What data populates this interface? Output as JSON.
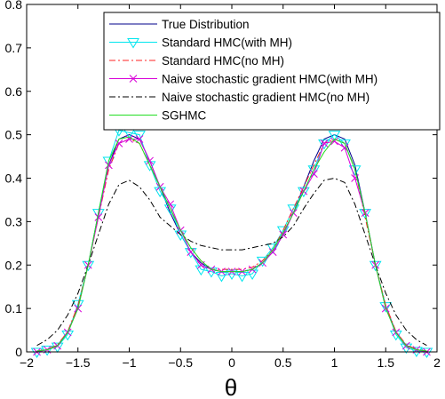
{
  "chart_data": {
    "type": "line",
    "xlabel": "θ",
    "ylabel": "",
    "title": "",
    "xlim": [
      -2,
      2
    ],
    "ylim": [
      0,
      0.8
    ],
    "xticks": [
      "−2",
      "−1.5",
      "−1",
      "−0.5",
      "0",
      "0.5",
      "1",
      "1.5",
      "2"
    ],
    "yticks": [
      "0",
      "0.1",
      "0.2",
      "0.3",
      "0.4",
      "0.5",
      "0.6",
      "0.7",
      "0.8"
    ],
    "grid": false,
    "legend_position": "top-right",
    "x": [
      -1.9,
      -1.8,
      -1.7,
      -1.6,
      -1.5,
      -1.4,
      -1.3,
      -1.2,
      -1.1,
      -1.0,
      -0.9,
      -0.8,
      -0.7,
      -0.6,
      -0.5,
      -0.4,
      -0.3,
      -0.2,
      -0.1,
      0.0,
      0.1,
      0.2,
      0.3,
      0.4,
      0.5,
      0.6,
      0.7,
      0.8,
      0.9,
      1.0,
      1.1,
      1.2,
      1.3,
      1.4,
      1.5,
      1.6,
      1.7,
      1.8,
      1.9
    ],
    "series": [
      {
        "name": "True Distribution",
        "color": "#00008b",
        "dash": "solid",
        "marker": "none",
        "values": [
          0.002,
          0.005,
          0.015,
          0.045,
          0.105,
          0.2,
          0.32,
          0.43,
          0.49,
          0.5,
          0.49,
          0.44,
          0.38,
          0.32,
          0.27,
          0.23,
          0.205,
          0.19,
          0.185,
          0.185,
          0.185,
          0.19,
          0.205,
          0.23,
          0.27,
          0.32,
          0.38,
          0.44,
          0.49,
          0.5,
          0.49,
          0.43,
          0.32,
          0.2,
          0.105,
          0.045,
          0.015,
          0.005,
          0.002
        ]
      },
      {
        "name": "Standard HMC(with MH)",
        "color": "#00e5ee",
        "dash": "solid",
        "marker": "triangle-down",
        "values": [
          0.0,
          0.005,
          0.012,
          0.04,
          0.11,
          0.2,
          0.32,
          0.44,
          0.51,
          0.505,
          0.5,
          0.43,
          0.37,
          0.33,
          0.27,
          0.23,
          0.19,
          0.185,
          0.175,
          0.18,
          0.175,
          0.18,
          0.21,
          0.24,
          0.28,
          0.33,
          0.37,
          0.42,
          0.48,
          0.5,
          0.48,
          0.42,
          0.32,
          0.2,
          0.105,
          0.04,
          0.01,
          0.002,
          0.0
        ]
      },
      {
        "name": "Standard HMC(no MH)",
        "color": "#ff2020",
        "dash": "dashdot",
        "marker": "none",
        "values": [
          0.002,
          0.006,
          0.016,
          0.047,
          0.107,
          0.2,
          0.31,
          0.42,
          0.48,
          0.49,
          0.48,
          0.43,
          0.38,
          0.33,
          0.28,
          0.24,
          0.21,
          0.19,
          0.19,
          0.19,
          0.19,
          0.195,
          0.21,
          0.235,
          0.28,
          0.33,
          0.38,
          0.43,
          0.48,
          0.49,
          0.48,
          0.42,
          0.31,
          0.2,
          0.107,
          0.047,
          0.016,
          0.006,
          0.002
        ]
      },
      {
        "name": "Naive stochastic gradient HMC(with MH)",
        "color": "#d800d8",
        "dash": "solid",
        "marker": "x",
        "values": [
          0.0,
          0.005,
          0.014,
          0.045,
          0.1,
          0.2,
          0.31,
          0.43,
          0.48,
          0.49,
          0.49,
          0.44,
          0.38,
          0.34,
          0.28,
          0.23,
          0.2,
          0.19,
          0.185,
          0.185,
          0.185,
          0.19,
          0.205,
          0.23,
          0.27,
          0.32,
          0.37,
          0.41,
          0.48,
          0.485,
          0.47,
          0.4,
          0.32,
          0.2,
          0.1,
          0.045,
          0.014,
          0.005,
          0.0
        ]
      },
      {
        "name": "Naive stochastic gradient HMC(no MH)",
        "color": "#000000",
        "dash": "dashdot",
        "marker": "none",
        "values": [
          0.015,
          0.028,
          0.05,
          0.085,
          0.135,
          0.2,
          0.27,
          0.34,
          0.385,
          0.395,
          0.38,
          0.35,
          0.31,
          0.29,
          0.27,
          0.255,
          0.245,
          0.24,
          0.235,
          0.235,
          0.235,
          0.24,
          0.245,
          0.25,
          0.265,
          0.29,
          0.33,
          0.365,
          0.395,
          0.4,
          0.39,
          0.34,
          0.27,
          0.2,
          0.135,
          0.085,
          0.05,
          0.028,
          0.015
        ]
      },
      {
        "name": "SGHMC",
        "color": "#22dd22",
        "dash": "solid",
        "marker": "none",
        "values": [
          0.002,
          0.005,
          0.014,
          0.044,
          0.1,
          0.2,
          0.32,
          0.44,
          0.49,
          0.495,
          0.48,
          0.43,
          0.38,
          0.33,
          0.28,
          0.24,
          0.21,
          0.19,
          0.185,
          0.185,
          0.185,
          0.19,
          0.205,
          0.235,
          0.275,
          0.32,
          0.37,
          0.42,
          0.46,
          0.49,
          0.48,
          0.42,
          0.32,
          0.2,
          0.1,
          0.044,
          0.014,
          0.005,
          0.002
        ]
      }
    ]
  }
}
